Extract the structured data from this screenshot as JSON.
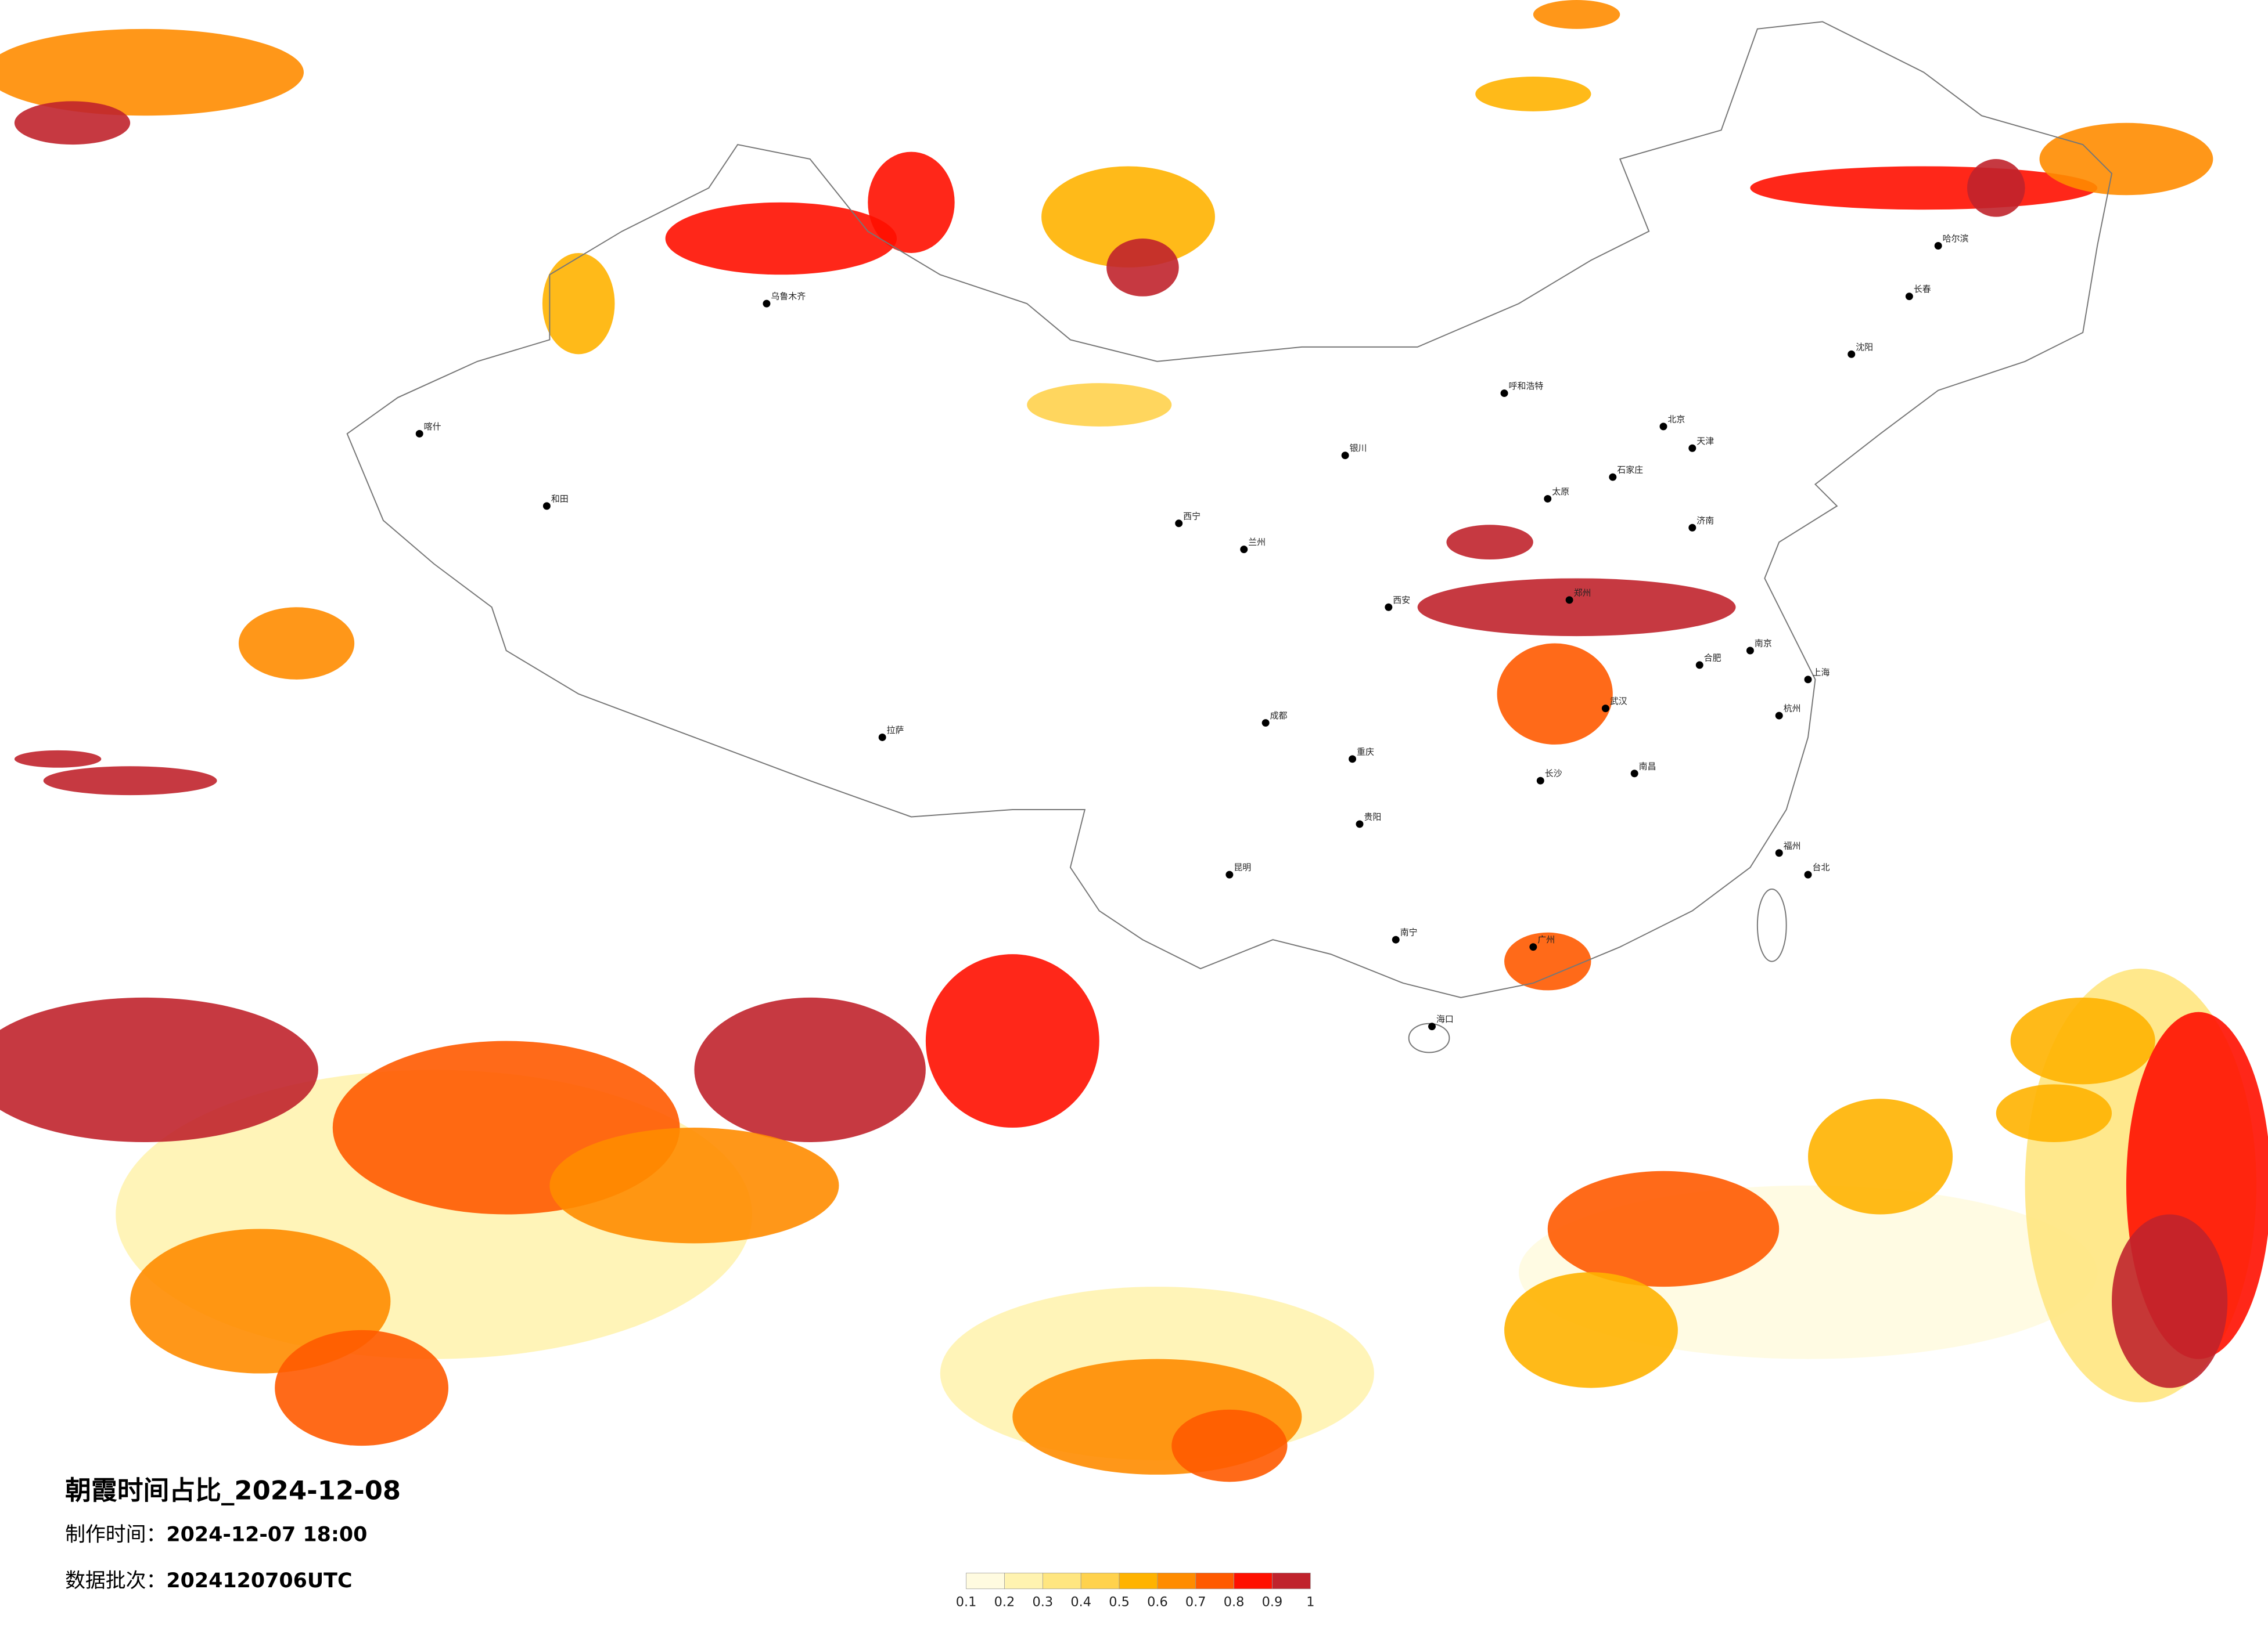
{
  "title": "朝霞时间占比_2024-12-08",
  "made_time": {
    "label": "制作时间：",
    "value": "2024-12-07 18:00"
  },
  "batch": {
    "label": "数据批次：",
    "value": "2024120706UTC"
  },
  "colorbar": {
    "ticks": [
      0.1,
      0.2,
      0.3,
      0.4,
      0.5,
      0.6,
      0.7,
      0.8,
      0.9,
      1
    ],
    "colors": [
      "#fffbe0",
      "#fff3b0",
      "#ffe680",
      "#ffd24d",
      "#ffb300",
      "#ff8c00",
      "#ff5a00",
      "#ff1000",
      "#c0232c"
    ]
  },
  "cities": [
    "乌鲁木齐",
    "喀什",
    "和田",
    "拉萨",
    "西宁",
    "兰州",
    "成都",
    "重庆",
    "昆明",
    "贵阳",
    "南宁",
    "广州",
    "海口",
    "长沙",
    "武汉",
    "郑州",
    "西安",
    "北京",
    "天津",
    "石家庄",
    "太原",
    "呼和浩特",
    "济南",
    "南京",
    "上海",
    "杭州",
    "福州",
    "南昌",
    "合肥",
    "沈阳",
    "长春",
    "哈尔滨",
    "银川",
    "台北"
  ]
}
